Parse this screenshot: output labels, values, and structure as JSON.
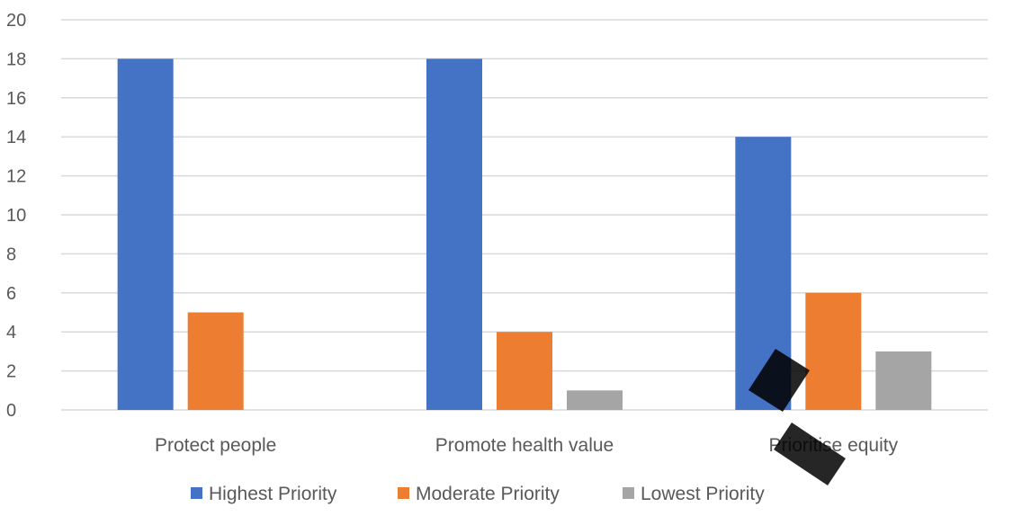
{
  "chart_data": {
    "type": "bar",
    "categories": [
      "Protect people",
      "Promote health value",
      "Prioritise equity"
    ],
    "series": [
      {
        "name": "Highest Priority",
        "color": "#4472c4",
        "values": [
          18,
          18,
          14
        ]
      },
      {
        "name": "Moderate Priority",
        "color": "#ed7d31",
        "values": [
          5,
          4,
          6
        ]
      },
      {
        "name": "Lowest Priority",
        "color": "#a5a5a5",
        "values": [
          0,
          1,
          3
        ]
      }
    ],
    "yticks": [
      "0",
      "2",
      "4",
      "6",
      "8",
      "10",
      "12",
      "14",
      "16",
      "18",
      "20"
    ],
    "ylim": [
      0,
      20
    ],
    "grid": true,
    "legend_position": "bottom",
    "title": "",
    "xlabel": "",
    "ylabel": ""
  }
}
